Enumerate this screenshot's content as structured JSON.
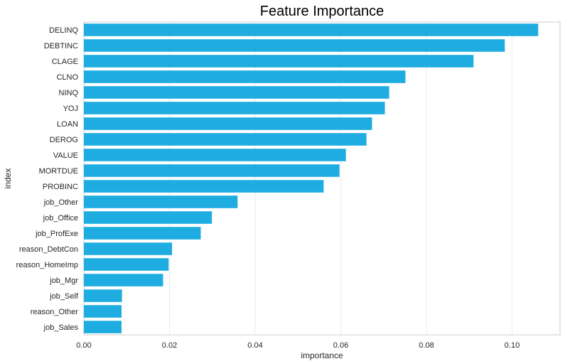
{
  "chart_data": {
    "type": "bar",
    "orientation": "horizontal",
    "title": "Feature Importance",
    "xlabel": "importance",
    "ylabel": "index",
    "xlim": [
      0,
      0.1112
    ],
    "xticks": [
      "0.00",
      "0.02",
      "0.04",
      "0.06",
      "0.08",
      "0.10"
    ],
    "xtick_values": [
      0,
      0.02,
      0.04,
      0.06,
      0.08,
      0.1
    ],
    "grid": "vertical",
    "bar_color": "#1fadE1",
    "categories": [
      "DELINQ",
      "DEBTINC",
      "CLAGE",
      "CLNO",
      "NINQ",
      "YOJ",
      "LOAN",
      "DEROG",
      "VALUE",
      "MORTDUE",
      "PROBINC",
      "job_Other",
      "job_Office",
      "job_ProfExe",
      "reason_DebtCon",
      "reason_HomeImp",
      "job_Mgr",
      "job_Self",
      "reason_Other",
      "job_Sales"
    ],
    "values": [
      0.1061,
      0.0983,
      0.091,
      0.0751,
      0.0713,
      0.0703,
      0.0673,
      0.066,
      0.0612,
      0.0597,
      0.056,
      0.0359,
      0.0299,
      0.0273,
      0.0206,
      0.0198,
      0.0185,
      0.0089,
      0.0088,
      0.0088
    ]
  }
}
